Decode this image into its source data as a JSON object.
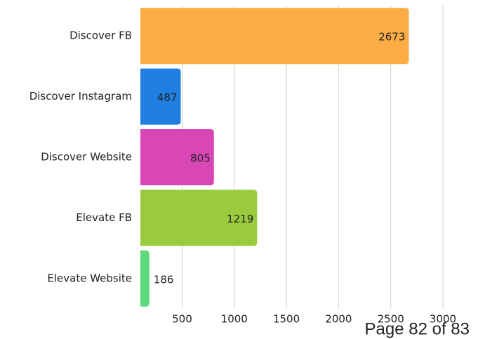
{
  "chart_data": {
    "type": "hbar",
    "categories": [
      "Discover FB",
      "Discover Instagram",
      "Discover Website",
      "Elevate FB",
      "Elevate Website"
    ],
    "values": [
      2673,
      487,
      805,
      1219,
      186
    ],
    "colors": [
      "#fbac44",
      "#1f7fe3",
      "#d946b5",
      "#9acb3e",
      "#5ed97c"
    ],
    "label_colors": [
      "#222222",
      "#ffffff",
      "#ffffff",
      "#222222",
      "#222222"
    ],
    "xlim": [
      100,
      3000
    ],
    "xticks": [
      500,
      1000,
      1500,
      2000,
      2500,
      3000
    ],
    "grid": true
  },
  "footer": "Page 82 of 83"
}
